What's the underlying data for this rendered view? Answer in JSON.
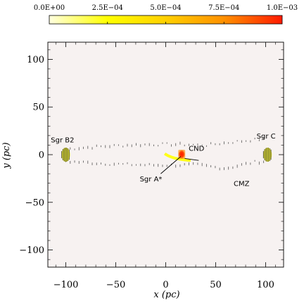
{
  "chart_data": {
    "type": "heatmap",
    "xlabel": "x (pc)",
    "ylabel": "y (pc)",
    "xlim": [
      -118,
      118
    ],
    "ylim": [
      -118,
      118
    ],
    "xticks": [
      -100,
      -50,
      0,
      50,
      100
    ],
    "xtick_labels": [
      "−100",
      "−50",
      "0",
      "50",
      "100"
    ],
    "yticks": [
      -100,
      -50,
      0,
      50,
      100
    ],
    "ytick_labels": [
      "−100",
      "−50",
      "0",
      "50",
      "100"
    ],
    "background_color": "#f7f2f1",
    "colorbar": {
      "min": 0.0,
      "max": 0.001,
      "ticks": [
        0.0,
        0.00025,
        0.0005,
        0.00075,
        0.001
      ],
      "tick_labels": [
        "0.0E+00",
        "2.5E−04",
        "5.0E−04",
        "7.5E−04",
        "1.0E−03"
      ],
      "colors": [
        "#ffffe0",
        "#ffff00",
        "#ffd000",
        "#ff9000",
        "#ff1a00"
      ]
    },
    "annotations": [
      {
        "text": "Sgr B2",
        "x": -115,
        "y": 13
      },
      {
        "text": "Sgr C",
        "x": 91,
        "y": 17
      },
      {
        "text": "CND",
        "x": 23,
        "y": 4
      },
      {
        "text": "Sgr A*",
        "x": -26,
        "y": -28
      },
      {
        "text": "CMZ",
        "x": 68,
        "y": -33
      }
    ],
    "features": [
      {
        "name": "sgr-b2-cloud",
        "x": -100,
        "y": 0,
        "value": 0.0002
      },
      {
        "name": "sgr-c-cloud",
        "x": 102,
        "y": 0,
        "value": 0.0003
      },
      {
        "name": "cnd-ring",
        "x": 16,
        "y": 0,
        "value": 0.001
      },
      {
        "name": "central-stream",
        "x": 7,
        "y": -2,
        "value": 0.0002
      }
    ]
  }
}
